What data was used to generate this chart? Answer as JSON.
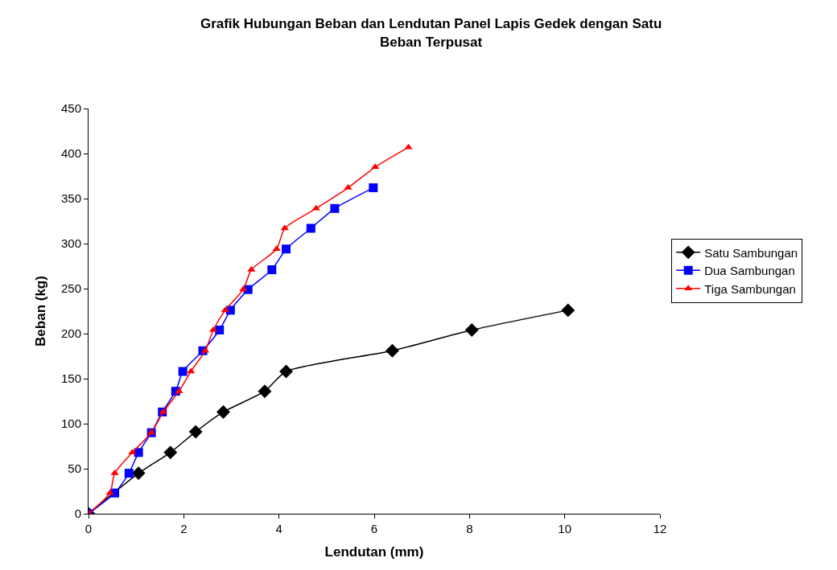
{
  "chart_data": {
    "type": "line",
    "title": "Grafik Hubungan Beban dan Lendutan Panel Lapis Gedek dengan Satu Beban Terpusat",
    "xlabel": "Lendutan (mm)",
    "ylabel": "Beban (kg)",
    "xlim": [
      0,
      12
    ],
    "xticks": [
      0,
      2,
      4,
      6,
      8,
      10,
      12
    ],
    "ylim": [
      0,
      450
    ],
    "yticks": [
      0,
      50,
      100,
      150,
      200,
      250,
      300,
      350,
      400,
      450
    ],
    "grid": false,
    "legend": "right",
    "line_style": "solid",
    "series": [
      {
        "name": "Satu Sambungan",
        "color": "#000000",
        "marker": "diamond",
        "x": [
          0,
          1.05,
          1.72,
          2.25,
          2.83,
          3.7,
          4.15,
          6.38,
          8.05,
          10.07
        ],
        "values": [
          0,
          45,
          68,
          91,
          113,
          136,
          158,
          181,
          204,
          226
        ]
      },
      {
        "name": "Dua Sambungan",
        "color": "#0000ff",
        "marker": "square",
        "x": [
          0,
          0.55,
          0.85,
          1.05,
          1.32,
          1.55,
          1.83,
          1.98,
          2.4,
          2.75,
          2.98,
          3.35,
          3.85,
          4.15,
          4.67,
          5.17,
          5.98
        ],
        "values": [
          0,
          23,
          45,
          68,
          90,
          113,
          136,
          158,
          181,
          204,
          226,
          249,
          271,
          294,
          317,
          339,
          362
        ]
      },
      {
        "name": "Tiga Sambungan",
        "color": "#ff0000",
        "marker": "triangle",
        "x": [
          0,
          0.45,
          0.55,
          0.92,
          1.32,
          1.57,
          1.9,
          2.15,
          2.45,
          2.62,
          2.87,
          3.25,
          3.42,
          3.95,
          4.12,
          4.78,
          5.45,
          6.02,
          6.72
        ],
        "values": [
          0,
          23,
          45,
          68,
          90,
          113,
          136,
          158,
          181,
          204,
          226,
          249,
          271,
          294,
          317,
          339,
          362,
          385,
          407
        ]
      }
    ]
  }
}
